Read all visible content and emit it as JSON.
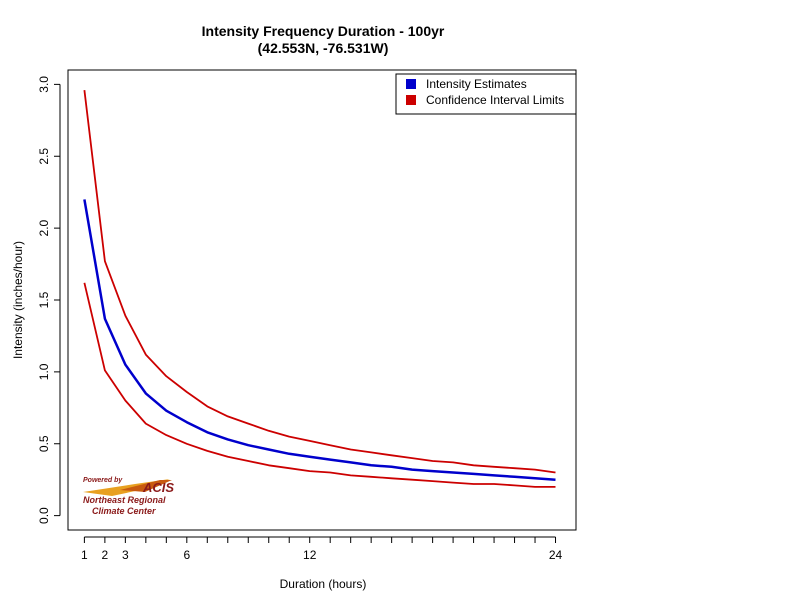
{
  "chart_data": {
    "type": "line",
    "title": "Intensity Frequency Duration - 100yr",
    "subtitle": "(42.553N, -76.531W)",
    "xlabel": "Duration (hours)",
    "ylabel": "Intensity (inches/hour)",
    "xlim": [
      0.2,
      25
    ],
    "ylim": [
      -0.1,
      3.1
    ],
    "x_ticks": [
      1,
      2,
      3,
      6,
      12,
      24
    ],
    "x_tick_labels": [
      "1",
      "2",
      "3",
      "6",
      "12",
      "24"
    ],
    "y_ticks": [
      0.0,
      0.5,
      1.0,
      1.5,
      2.0,
      2.5,
      3.0
    ],
    "y_tick_labels": [
      "0.0",
      "0.5",
      "1.0",
      "1.5",
      "2.0",
      "2.5",
      "3.0"
    ],
    "x": [
      1,
      2,
      3,
      4,
      5,
      6,
      7,
      8,
      9,
      10,
      11,
      12,
      13,
      14,
      15,
      16,
      17,
      18,
      19,
      20,
      21,
      22,
      23,
      24
    ],
    "series": [
      {
        "name": "Intensity Estimates",
        "color": "#0000cc",
        "values": [
          2.2,
          1.37,
          1.05,
          0.85,
          0.73,
          0.65,
          0.58,
          0.53,
          0.49,
          0.46,
          0.43,
          0.41,
          0.39,
          0.37,
          0.35,
          0.34,
          0.32,
          0.31,
          0.3,
          0.29,
          0.28,
          0.27,
          0.26,
          0.25
        ]
      },
      {
        "name": "Confidence Interval Limits",
        "color": "#cc0000",
        "role": "upper",
        "values": [
          2.96,
          1.77,
          1.39,
          1.12,
          0.97,
          0.86,
          0.76,
          0.69,
          0.64,
          0.59,
          0.55,
          0.52,
          0.49,
          0.46,
          0.44,
          0.42,
          0.4,
          0.38,
          0.37,
          0.35,
          0.34,
          0.33,
          0.32,
          0.3
        ]
      },
      {
        "name": "",
        "color": "#cc0000",
        "role": "lower",
        "values": [
          1.62,
          1.01,
          0.8,
          0.64,
          0.56,
          0.5,
          0.45,
          0.41,
          0.38,
          0.35,
          0.33,
          0.31,
          0.3,
          0.28,
          0.27,
          0.26,
          0.25,
          0.24,
          0.23,
          0.22,
          0.22,
          0.21,
          0.2,
          0.2
        ]
      }
    ],
    "legend": {
      "placement": "top-right",
      "entries": [
        {
          "label": "Intensity Estimates",
          "color": "#0000cc"
        },
        {
          "label": "Confidence Interval Limits",
          "color": "#cc0000"
        }
      ]
    },
    "grid": false
  },
  "logo": {
    "powered_by": "Powered by",
    "acis": "ACIS",
    "line1": "Northeast Regional",
    "line2": "Climate Center"
  }
}
